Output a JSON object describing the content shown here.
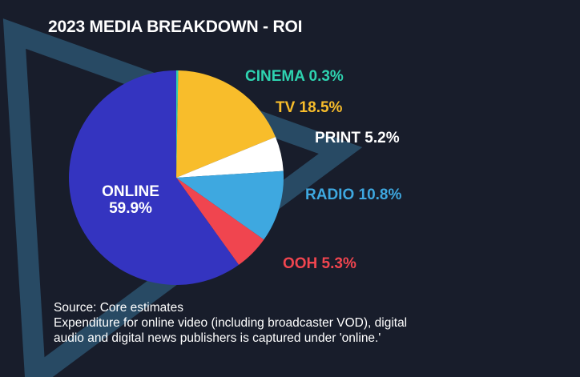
{
  "chart_data": {
    "type": "pie",
    "title": "2023 MEDIA BREAKDOWN - ROI",
    "slices": [
      {
        "category": "CINEMA",
        "value": 0.3,
        "label": "CINEMA 0.3%",
        "color": "#2ed3b0"
      },
      {
        "category": "TV",
        "value": 18.5,
        "label": "TV 18.5%",
        "color": "#f8bd2b"
      },
      {
        "category": "PRINT",
        "value": 5.2,
        "label": "PRINT 5.2%",
        "color": "#ffffff"
      },
      {
        "category": "RADIO",
        "value": 10.8,
        "label": "RADIO 10.8%",
        "color": "#3ea8e0"
      },
      {
        "category": "OOH",
        "value": 5.3,
        "label": "OOH 5.3%",
        "color": "#f0454f"
      },
      {
        "category": "ONLINE",
        "value": 59.9,
        "label": "ONLINE",
        "value_label": "59.9%",
        "color": "#3434c0"
      }
    ]
  },
  "footnote": {
    "line1": "Source: Core estimates",
    "line2": "Expenditure for online video (including broadcaster VOD), digital",
    "line3": "audio and digital news publishers is captured under 'online.'"
  }
}
